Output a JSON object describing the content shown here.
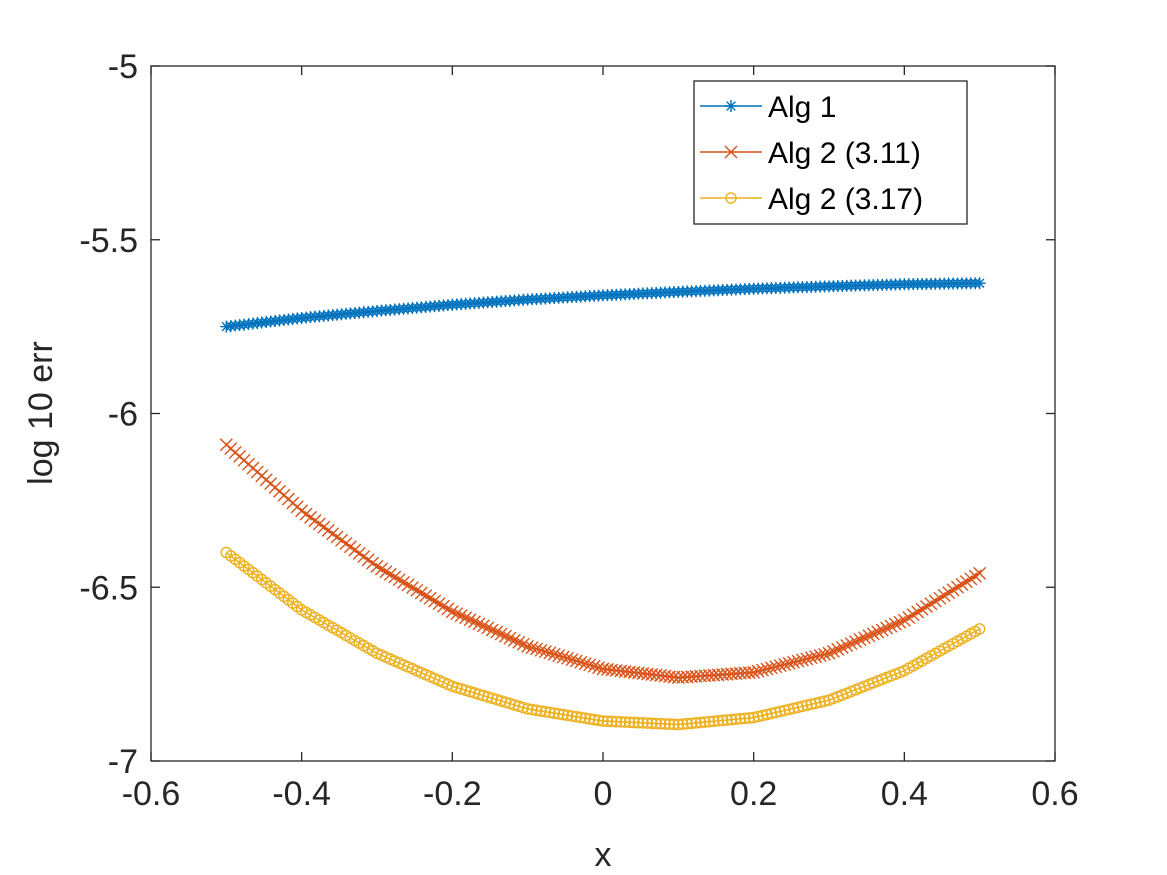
{
  "chart_data": {
    "type": "line",
    "title": "",
    "xlabel": "x",
    "ylabel": "log 10 err",
    "xlim": [
      -0.6,
      0.6
    ],
    "ylim": [
      -7,
      -5
    ],
    "xticks": [
      -0.6,
      -0.4,
      -0.2,
      0,
      0.2,
      0.4,
      0.6
    ],
    "yticks": [
      -7,
      -6.5,
      -6,
      -5.5,
      -5
    ],
    "xtick_labels": [
      "-0.6",
      "-0.4",
      "-0.2",
      "0",
      "0.2",
      "0.4",
      "0.6"
    ],
    "ytick_labels": [
      "-7",
      "-6.5",
      "-6",
      "-5.5",
      "-5"
    ],
    "legend_position": "top-right",
    "series": [
      {
        "name": "Alg 1",
        "marker": "asterisk",
        "color": "#0072BD",
        "x": [
          -0.5,
          -0.4,
          -0.3,
          -0.2,
          -0.1,
          0.0,
          0.1,
          0.2,
          0.3,
          0.4,
          0.5
        ],
        "y": [
          -5.75,
          -5.725,
          -5.705,
          -5.687,
          -5.672,
          -5.66,
          -5.65,
          -5.641,
          -5.634,
          -5.628,
          -5.625
        ]
      },
      {
        "name": "Alg 2 (3.11)",
        "marker": "x",
        "color": "#D95319",
        "x": [
          -0.5,
          -0.4,
          -0.3,
          -0.2,
          -0.1,
          0.0,
          0.1,
          0.2,
          0.3,
          0.4,
          0.5
        ],
        "y": [
          -6.09,
          -6.28,
          -6.44,
          -6.57,
          -6.67,
          -6.735,
          -6.76,
          -6.745,
          -6.69,
          -6.595,
          -6.46
        ]
      },
      {
        "name": "Alg 2 (3.17)",
        "marker": "circle",
        "color": "#EDB120",
        "x": [
          -0.5,
          -0.4,
          -0.3,
          -0.2,
          -0.1,
          0.0,
          0.1,
          0.2,
          0.3,
          0.4,
          0.5
        ],
        "y": [
          -6.4,
          -6.565,
          -6.69,
          -6.785,
          -6.85,
          -6.885,
          -6.895,
          -6.875,
          -6.825,
          -6.74,
          -6.62
        ]
      }
    ]
  }
}
